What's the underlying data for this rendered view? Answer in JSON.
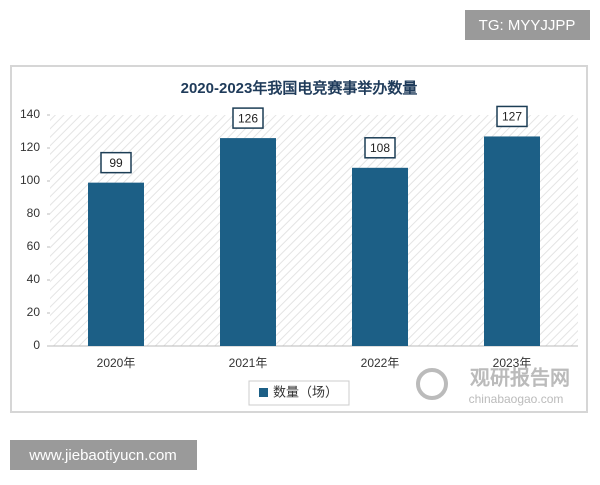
{
  "watermark": "TG: MYYJJPP",
  "footer": "www.jiebaotiyucn.com",
  "logo": {
    "name": "观研报告网",
    "url": "chinabaogao.com"
  },
  "chart_data": {
    "type": "bar",
    "title": "2020-2023年我国电竞赛事举办数量",
    "categories": [
      "2020年",
      "2021年",
      "2022年",
      "2023年"
    ],
    "series": [
      {
        "name": "数量（场）",
        "color": "#1c5f86",
        "values": [
          99,
          126,
          108,
          127
        ]
      }
    ],
    "ylim": [
      0,
      140
    ],
    "yticks": [
      0,
      20,
      40,
      60,
      80,
      100,
      120,
      140
    ],
    "data_labels": true,
    "legend": "bottom"
  }
}
